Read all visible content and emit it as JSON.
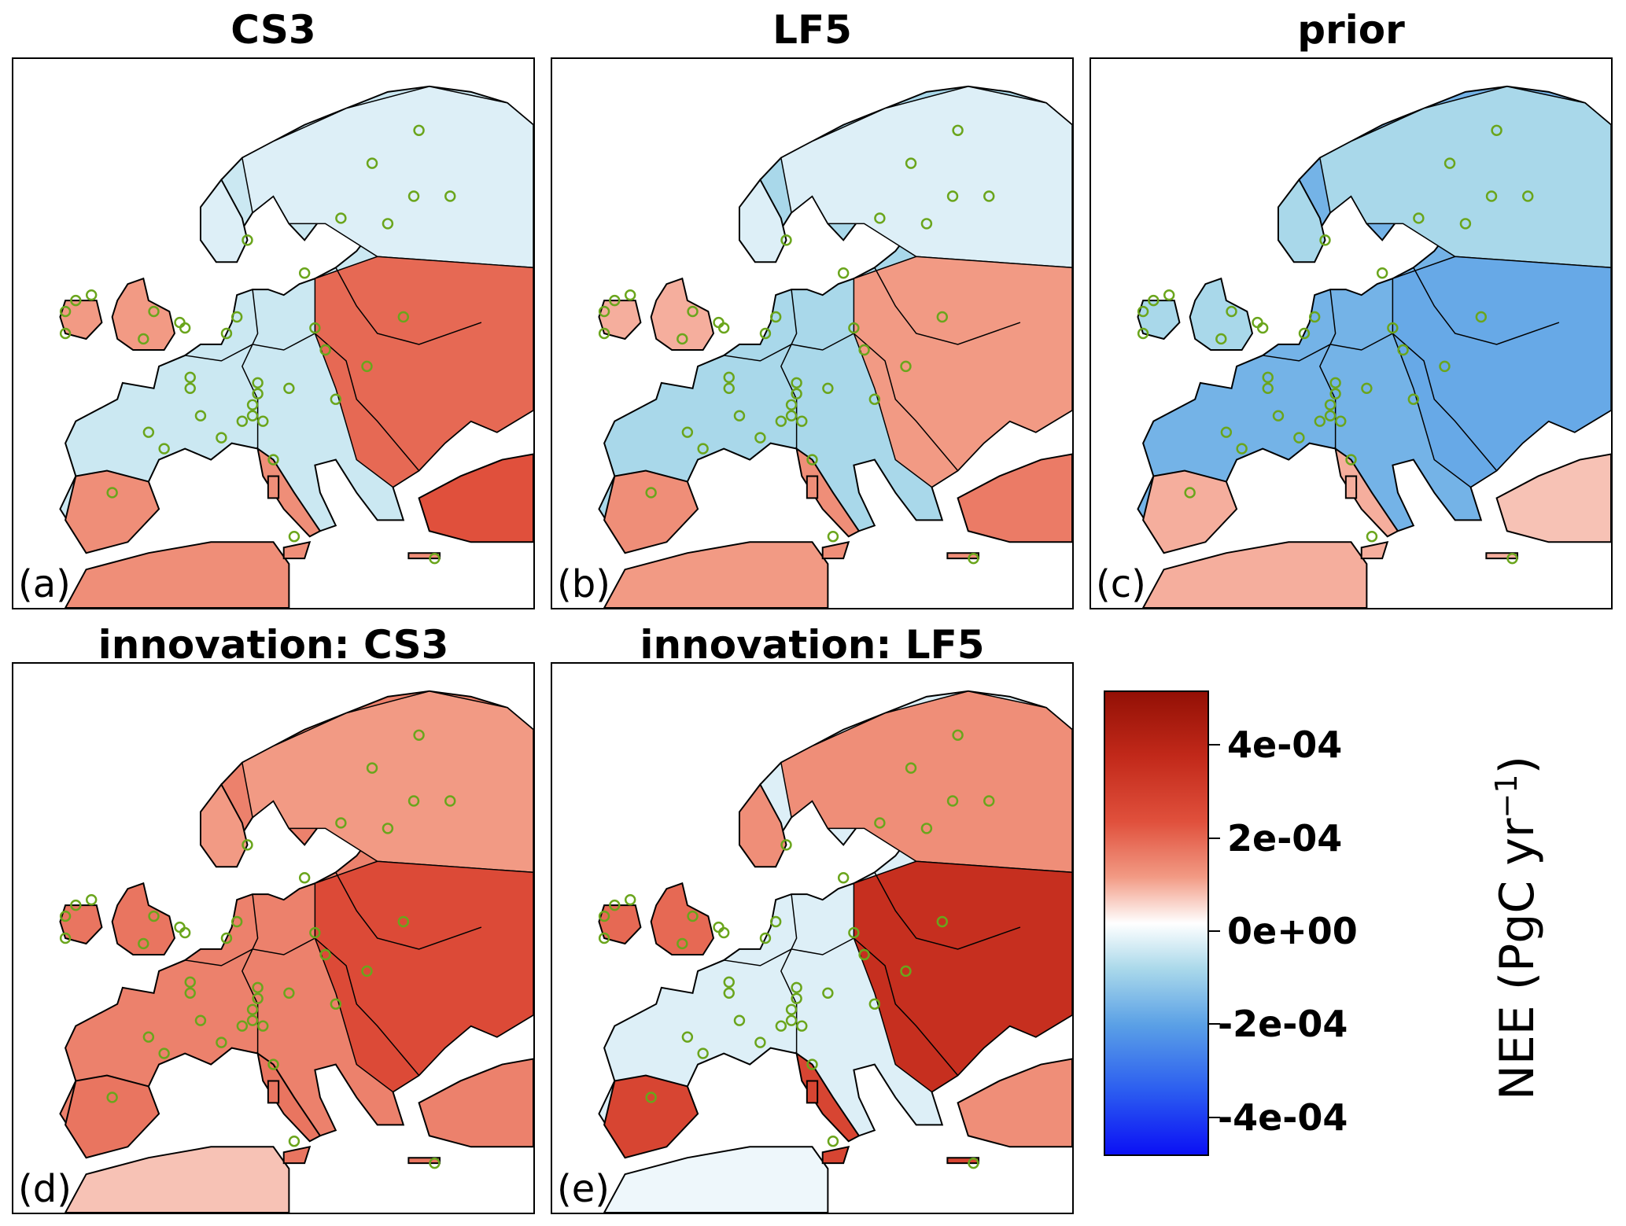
{
  "panels": [
    {
      "id": "a",
      "title": "CS3",
      "label": "(a)",
      "field": "cs3"
    },
    {
      "id": "b",
      "title": "LF5",
      "label": "(b)",
      "field": "lf5"
    },
    {
      "id": "c",
      "title": "prior",
      "label": "(c)",
      "field": "prior"
    },
    {
      "id": "d",
      "title": "innovation: CS3",
      "label": "(d)",
      "field": "innov_cs3"
    },
    {
      "id": "e",
      "title": "innovation: LF5",
      "label": "(e)",
      "field": "innov_lf5"
    }
  ],
  "colorbar": {
    "label": "NEE (PgC yr",
    "label_sup": "−1",
    "label_close": ")",
    "ticks": [
      "4e-04",
      "2e-04",
      "0e+00",
      "-2e-04",
      "-4e-04"
    ],
    "tick_values": [
      0.0004,
      0.0002,
      0.0,
      -0.0002,
      -0.0004
    ],
    "range": [
      -0.0005,
      0.0005
    ],
    "colormap": "blue-white-red",
    "colors": {
      "negative_max": "#0b10f5",
      "zero": "#ffffff",
      "positive_max": "#931005"
    }
  },
  "site_marker_color": "#6aa51c",
  "coastline_color": "#000000"
}
